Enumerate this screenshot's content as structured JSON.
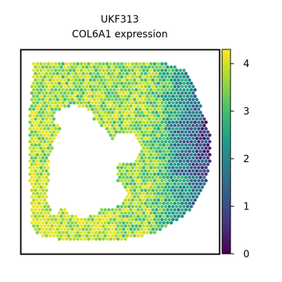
{
  "chart_data": {
    "type": "scatter",
    "subtype": "spatial-hexbin",
    "title": "UKF313",
    "subtitle": "COL6A1 expression",
    "xlabel": "",
    "ylabel": "",
    "x_ticks": [],
    "y_ticks": [],
    "grid": false,
    "colormap": "viridis",
    "colorbar": {
      "label": "",
      "range": [
        0,
        4.3
      ],
      "ticks": [
        0,
        1,
        2,
        3,
        4
      ],
      "tick_labels": [
        "0",
        "1",
        "2",
        "3",
        "4"
      ]
    },
    "value_summary": {
      "min": 0,
      "max": 4.3,
      "high_region": "left and lower-left tissue around the central hole (3.5-4.2)",
      "mid_region": "upper and central tissue (2.5-3.5)",
      "low_region": "right edge of the tissue (0.5-2.0)"
    }
  },
  "colors": {
    "viridis": [
      "#440154",
      "#482878",
      "#3e4989",
      "#31688e",
      "#26828e",
      "#1f9e89",
      "#35b779",
      "#6ece58",
      "#b5de2b",
      "#fde725"
    ],
    "frame": "#000000",
    "background": "#ffffff"
  }
}
